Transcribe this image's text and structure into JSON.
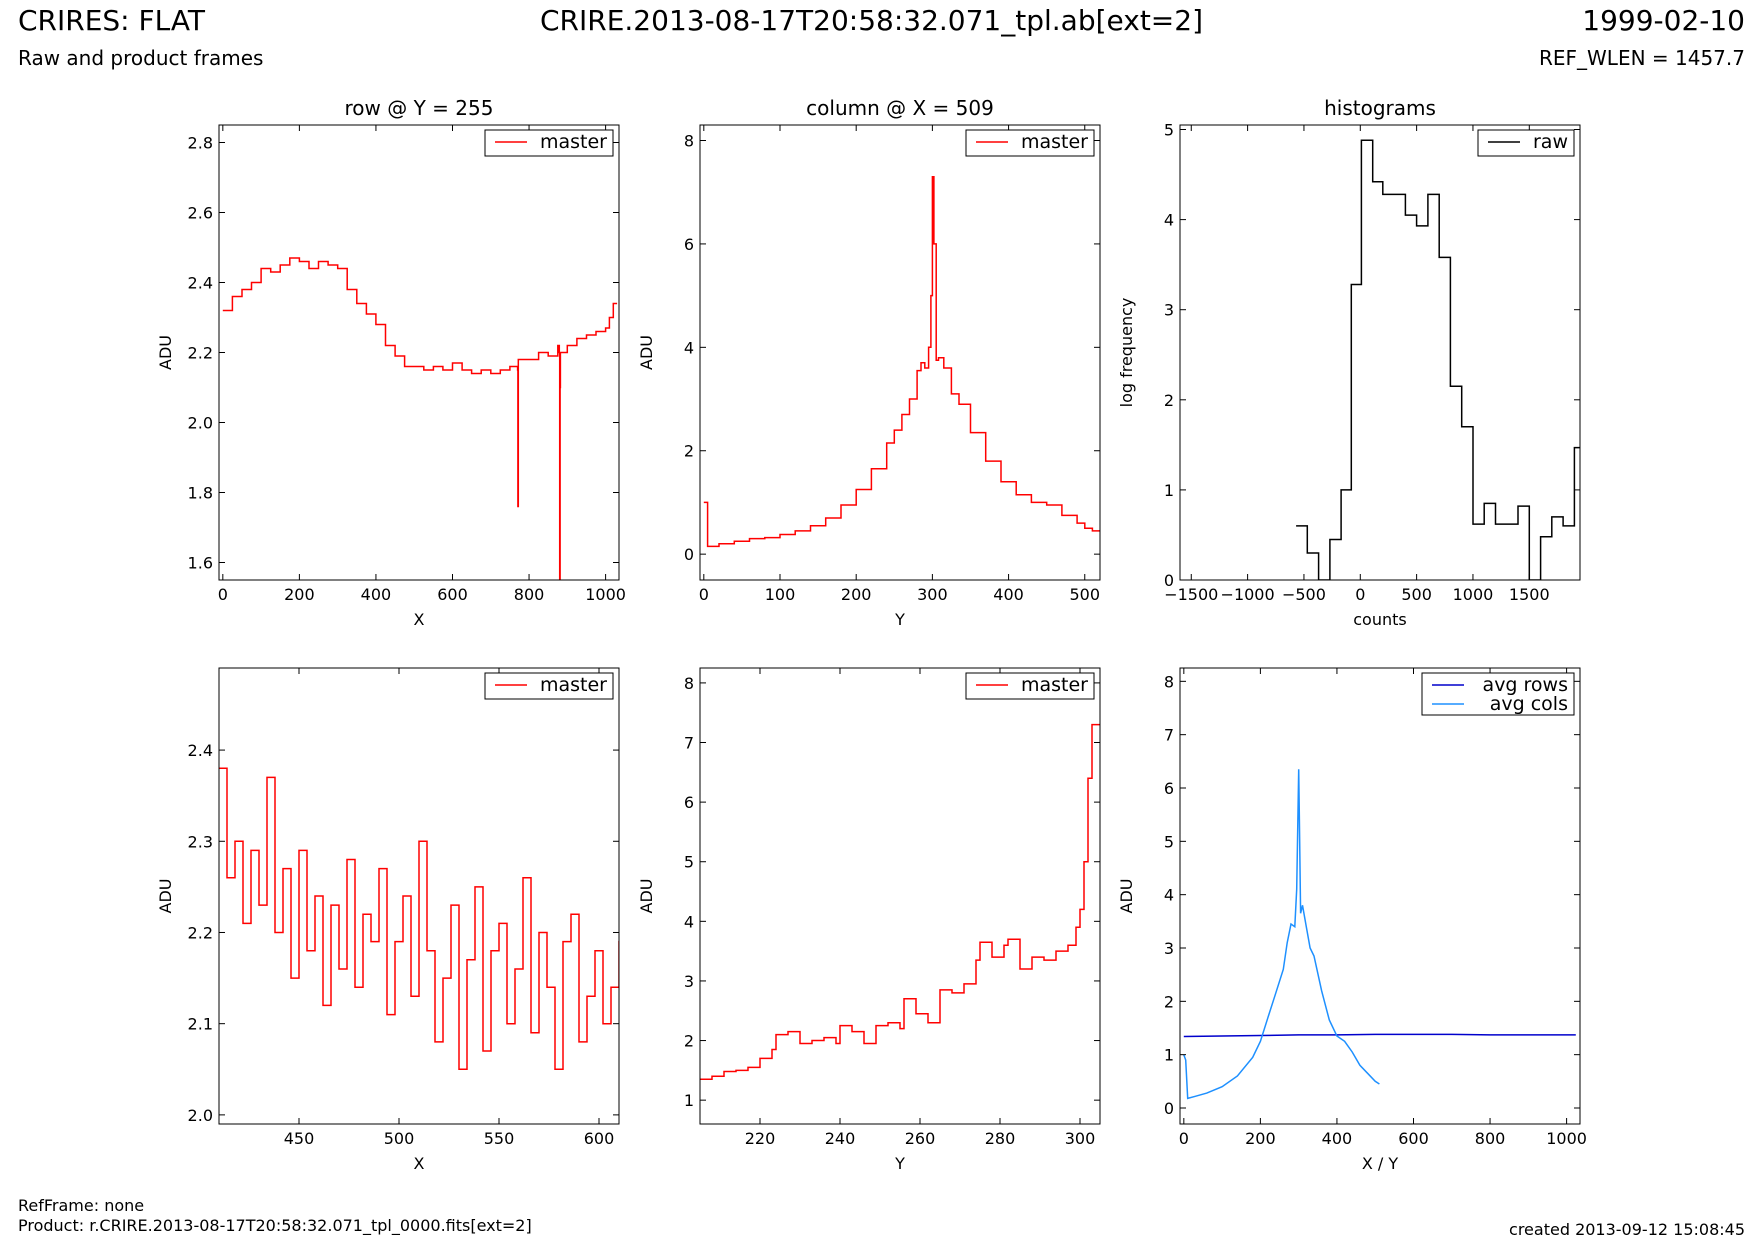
{
  "header": {
    "title_left": "CRIRES: FLAT",
    "subtitle_left": "Raw and product frames",
    "title_center": "CRIRE.2013-08-17T20:58:32.071_tpl.ab[ext=2]",
    "title_right": "1999-02-10",
    "subtitle_right": "REF_WLEN = 1457.7"
  },
  "footer": {
    "refframe": "RefFrame: none",
    "product": "Product: r.CRIRE.2013-08-17T20:58:32.071_tpl_0000.fits[ext=2]",
    "created": "created 2013-09-12 15:08:45"
  },
  "colors": {
    "master": "#ff0000",
    "raw": "#000000",
    "avg_rows": "#0000cc",
    "avg_cols": "#1e90ff"
  },
  "chart_data": [
    {
      "type": "line",
      "title": "row @ Y = 255",
      "xlabel": "X",
      "ylabel": "ADU",
      "xlim": [
        -10,
        1035
      ],
      "ylim": [
        1.55,
        2.85
      ],
      "xticks": [
        0,
        200,
        400,
        600,
        800,
        1000
      ],
      "yticks": [
        1.6,
        1.8,
        2.0,
        2.2,
        2.4,
        2.6,
        2.8
      ],
      "ytick_decimals": 1,
      "series": [
        {
          "name": "master",
          "color": "#ff0000",
          "step": true,
          "x": [
            0,
            25,
            50,
            75,
            100,
            125,
            150,
            175,
            200,
            225,
            250,
            275,
            300,
            325,
            350,
            375,
            400,
            425,
            450,
            475,
            500,
            525,
            550,
            575,
            600,
            625,
            650,
            675,
            700,
            725,
            750,
            770,
            771,
            772,
            800,
            825,
            850,
            875,
            879,
            880,
            881,
            882,
            900,
            925,
            950,
            975,
            1000,
            1010,
            1020
          ],
          "y": [
            2.32,
            2.36,
            2.38,
            2.4,
            2.44,
            2.43,
            2.45,
            2.47,
            2.46,
            2.44,
            2.46,
            2.45,
            2.44,
            2.38,
            2.34,
            2.31,
            2.28,
            2.22,
            2.19,
            2.16,
            2.16,
            2.15,
            2.16,
            2.15,
            2.17,
            2.15,
            2.14,
            2.15,
            2.14,
            2.15,
            2.16,
            2.15,
            1.76,
            2.18,
            2.18,
            2.2,
            2.19,
            2.22,
            2.2,
            1.55,
            2.1,
            2.2,
            2.22,
            2.24,
            2.25,
            2.26,
            2.27,
            2.3,
            2.34
          ]
        }
      ],
      "legend": {
        "position": "top-right",
        "entries": [
          "master"
        ]
      }
    },
    {
      "type": "line",
      "title": "column @ X = 509",
      "xlabel": "Y",
      "ylabel": "ADU",
      "xlim": [
        -5,
        520
      ],
      "ylim": [
        -0.5,
        8.3
      ],
      "xticks": [
        0,
        100,
        200,
        300,
        400,
        500
      ],
      "yticks": [
        0,
        2,
        4,
        6,
        8
      ],
      "ytick_decimals": 0,
      "series": [
        {
          "name": "master",
          "color": "#ff0000",
          "step": true,
          "x": [
            0,
            4,
            5,
            20,
            40,
            60,
            80,
            100,
            120,
            140,
            160,
            180,
            200,
            220,
            240,
            250,
            260,
            270,
            280,
            285,
            290,
            295,
            298,
            300,
            302,
            305,
            308,
            315,
            325,
            335,
            350,
            370,
            390,
            410,
            430,
            450,
            470,
            490,
            500,
            510
          ],
          "y": [
            1.0,
            1.0,
            0.15,
            0.2,
            0.25,
            0.3,
            0.32,
            0.38,
            0.45,
            0.55,
            0.7,
            0.95,
            1.25,
            1.65,
            2.15,
            2.4,
            2.7,
            3.0,
            3.55,
            3.7,
            3.6,
            4.0,
            5.0,
            7.3,
            6.0,
            3.75,
            3.8,
            3.6,
            3.1,
            2.9,
            2.35,
            1.8,
            1.4,
            1.15,
            1.0,
            0.95,
            0.75,
            0.6,
            0.5,
            0.45
          ]
        }
      ],
      "legend": {
        "position": "top-right",
        "entries": [
          "master"
        ]
      }
    },
    {
      "type": "line",
      "title": "histograms",
      "xlabel": "counts",
      "ylabel": "log frequency",
      "xlim": [
        -1600,
        1950
      ],
      "ylim": [
        0,
        5.05
      ],
      "xticks": [
        -1500,
        -1000,
        -500,
        0,
        500,
        1000,
        1500
      ],
      "yticks": [
        0,
        1,
        2,
        3,
        4,
        5
      ],
      "ytick_decimals": 0,
      "series": [
        {
          "name": "raw",
          "color": "#000000",
          "step": true,
          "x": [
            -570,
            -470,
            -370,
            -270,
            -170,
            -80,
            10,
            110,
            200,
            300,
            400,
            500,
            600,
            700,
            800,
            900,
            1000,
            1100,
            1200,
            1300,
            1400,
            1500,
            1600,
            1700,
            1800,
            1900
          ],
          "y": [
            0.6,
            0.3,
            0,
            0.45,
            1.0,
            3.28,
            4.88,
            4.42,
            4.28,
            4.28,
            4.05,
            3.93,
            4.28,
            3.58,
            2.15,
            1.7,
            0.62,
            0.85,
            0.62,
            0.62,
            0.82,
            0,
            0.48,
            0.7,
            0.6,
            1.47
          ]
        }
      ],
      "legend": {
        "position": "top-right",
        "entries": [
          "raw"
        ]
      }
    },
    {
      "type": "line",
      "title": "",
      "xlabel": "X",
      "ylabel": "ADU",
      "xlim": [
        410,
        610
      ],
      "ylim": [
        1.99,
        2.49
      ],
      "xticks": [
        450,
        500,
        550,
        600
      ],
      "yticks": [
        2.0,
        2.1,
        2.2,
        2.3,
        2.4
      ],
      "ytick_decimals": 1,
      "series": [
        {
          "name": "master",
          "color": "#ff0000",
          "step": true,
          "x": [
            410,
            414,
            418,
            422,
            426,
            430,
            434,
            438,
            442,
            446,
            450,
            454,
            458,
            462,
            466,
            470,
            474,
            478,
            482,
            486,
            490,
            494,
            498,
            502,
            506,
            510,
            514,
            518,
            522,
            526,
            530,
            534,
            538,
            542,
            546,
            550,
            554,
            558,
            562,
            566,
            570,
            574,
            578,
            582,
            586,
            590,
            594,
            598,
            602,
            606,
            610
          ],
          "y": [
            2.38,
            2.26,
            2.3,
            2.21,
            2.29,
            2.23,
            2.37,
            2.2,
            2.27,
            2.15,
            2.29,
            2.18,
            2.24,
            2.12,
            2.23,
            2.16,
            2.28,
            2.14,
            2.22,
            2.19,
            2.27,
            2.11,
            2.19,
            2.24,
            2.13,
            2.3,
            2.18,
            2.08,
            2.15,
            2.23,
            2.05,
            2.17,
            2.25,
            2.07,
            2.18,
            2.21,
            2.1,
            2.16,
            2.26,
            2.09,
            2.2,
            2.14,
            2.05,
            2.19,
            2.22,
            2.08,
            2.13,
            2.18,
            2.1,
            2.14,
            2.19
          ]
        }
      ],
      "legend": {
        "position": "top-right",
        "entries": [
          "master"
        ]
      }
    },
    {
      "type": "line",
      "title": "",
      "xlabel": "Y",
      "ylabel": "ADU",
      "xlim": [
        205,
        305
      ],
      "ylim": [
        0.6,
        8.25
      ],
      "xticks": [
        220,
        240,
        260,
        280,
        300
      ],
      "yticks": [
        1,
        2,
        3,
        4,
        5,
        6,
        7,
        8
      ],
      "ytick_decimals": 0,
      "series": [
        {
          "name": "master",
          "color": "#ff0000",
          "step": true,
          "x": [
            205,
            208,
            211,
            214,
            217,
            220,
            223,
            224,
            227,
            230,
            233,
            236,
            239,
            240,
            243,
            246,
            249,
            252,
            255,
            256,
            259,
            262,
            265,
            268,
            271,
            274,
            275,
            278,
            281,
            282,
            285,
            288,
            291,
            294,
            297,
            299,
            300,
            301,
            302,
            303,
            304
          ],
          "y": [
            1.35,
            1.4,
            1.48,
            1.5,
            1.55,
            1.7,
            1.85,
            2.1,
            2.15,
            1.95,
            2.0,
            2.05,
            1.95,
            2.25,
            2.15,
            1.95,
            2.25,
            2.3,
            2.2,
            2.7,
            2.45,
            2.3,
            2.85,
            2.8,
            2.95,
            3.35,
            3.65,
            3.4,
            3.6,
            3.7,
            3.2,
            3.4,
            3.35,
            3.5,
            3.6,
            3.9,
            4.2,
            5.0,
            6.4,
            7.3,
            7.3
          ]
        }
      ],
      "legend": {
        "position": "top-right",
        "entries": [
          "master"
        ]
      }
    },
    {
      "type": "line",
      "title": "",
      "xlabel": "X / Y",
      "ylabel": "ADU",
      "xlim": [
        -10,
        1035
      ],
      "ylim": [
        -0.3,
        8.25
      ],
      "xticks": [
        0,
        200,
        400,
        600,
        800,
        1000
      ],
      "yticks": [
        0,
        1,
        2,
        3,
        4,
        5,
        6,
        7,
        8
      ],
      "ytick_decimals": 0,
      "series": [
        {
          "name": "avg rows",
          "color": "#0000cc",
          "step": false,
          "x": [
            0,
            100,
            200,
            300,
            400,
            500,
            600,
            700,
            800,
            900,
            1000,
            1024
          ],
          "y": [
            1.34,
            1.35,
            1.36,
            1.37,
            1.37,
            1.38,
            1.38,
            1.38,
            1.37,
            1.37,
            1.37,
            1.37
          ]
        },
        {
          "name": "avg cols",
          "color": "#1e90ff",
          "step": false,
          "x": [
            0,
            5,
            10,
            30,
            60,
            100,
            140,
            180,
            200,
            220,
            240,
            260,
            270,
            280,
            290,
            295,
            300,
            302,
            305,
            310,
            320,
            330,
            340,
            360,
            380,
            400,
            420,
            440,
            460,
            480,
            500,
            511
          ],
          "y": [
            1.0,
            0.9,
            0.18,
            0.22,
            0.28,
            0.4,
            0.6,
            0.95,
            1.25,
            1.7,
            2.15,
            2.6,
            3.1,
            3.45,
            3.4,
            4.1,
            6.35,
            5.4,
            3.65,
            3.8,
            3.4,
            3.0,
            2.85,
            2.2,
            1.65,
            1.35,
            1.25,
            1.05,
            0.8,
            0.65,
            0.5,
            0.45
          ]
        }
      ],
      "legend": {
        "position": "top-right",
        "entries": [
          "avg rows",
          "avg cols"
        ]
      }
    }
  ]
}
